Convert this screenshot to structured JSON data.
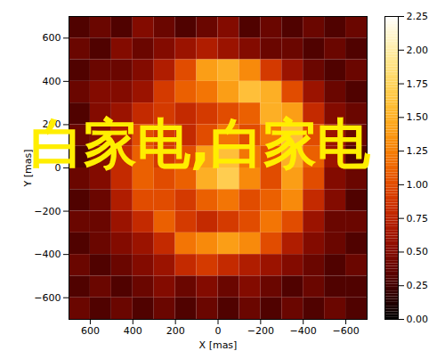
{
  "chart_data": {
    "type": "heatmap",
    "xlabel": "X [mas]",
    "ylabel": "Y [mas]",
    "xlim": [
      700,
      -700
    ],
    "ylim": [
      -700,
      700
    ],
    "xticks": [
      600,
      400,
      200,
      0,
      -200,
      -400,
      -600
    ],
    "yticks": [
      -600,
      -400,
      -200,
      0,
      200,
      400,
      600
    ],
    "annotation": "白家电,白家电",
    "x": [
      650,
      550,
      450,
      350,
      250,
      150,
      50,
      -50,
      -150,
      -250,
      -350,
      -450,
      -550,
      -650
    ],
    "y": [
      650,
      550,
      450,
      350,
      250,
      150,
      50,
      -50,
      -150,
      -250,
      -350,
      -450,
      -550,
      -650
    ],
    "values": [
      [
        0.3,
        0.4,
        0.3,
        0.5,
        0.4,
        0.3,
        0.4,
        0.5,
        0.3,
        0.4,
        0.3,
        0.4,
        0.3,
        0.4
      ],
      [
        0.4,
        0.3,
        0.5,
        0.4,
        0.5,
        0.6,
        0.7,
        0.6,
        0.5,
        0.4,
        0.4,
        0.3,
        0.4,
        0.3
      ],
      [
        0.3,
        0.4,
        0.4,
        0.5,
        0.7,
        1.0,
        1.4,
        1.5,
        1.3,
        0.9,
        0.6,
        0.4,
        0.3,
        0.4
      ],
      [
        0.4,
        0.5,
        0.5,
        0.6,
        0.9,
        1.1,
        1.2,
        1.4,
        1.6,
        1.5,
        1.0,
        0.6,
        0.4,
        0.3
      ],
      [
        0.3,
        0.5,
        0.6,
        0.8,
        0.9,
        0.8,
        0.9,
        1.0,
        1.1,
        1.5,
        1.4,
        0.8,
        0.5,
        0.4
      ],
      [
        0.4,
        0.5,
        0.7,
        1.0,
        0.9,
        0.8,
        1.0,
        1.2,
        1.0,
        1.2,
        1.6,
        1.0,
        0.6,
        0.4
      ],
      [
        0.3,
        0.5,
        0.8,
        1.1,
        0.9,
        1.0,
        1.4,
        1.6,
        1.2,
        1.0,
        1.5,
        1.1,
        0.6,
        0.3
      ],
      [
        0.4,
        0.5,
        0.8,
        1.1,
        1.0,
        1.1,
        1.5,
        1.7,
        1.3,
        1.0,
        1.4,
        1.0,
        0.5,
        0.4
      ],
      [
        0.3,
        0.4,
        0.7,
        1.0,
        1.0,
        0.9,
        1.1,
        1.2,
        1.0,
        1.1,
        1.3,
        0.8,
        0.5,
        0.3
      ],
      [
        0.4,
        0.4,
        0.6,
        0.8,
        1.1,
        0.9,
        0.8,
        0.9,
        1.0,
        1.2,
        1.0,
        0.6,
        0.4,
        0.4
      ],
      [
        0.3,
        0.4,
        0.5,
        0.6,
        0.8,
        1.2,
        1.3,
        1.4,
        1.3,
        1.0,
        0.7,
        0.5,
        0.4,
        0.3
      ],
      [
        0.4,
        0.3,
        0.4,
        0.5,
        0.6,
        0.8,
        0.9,
        0.8,
        0.7,
        0.6,
        0.5,
        0.4,
        0.3,
        0.4
      ],
      [
        0.3,
        0.4,
        0.3,
        0.4,
        0.5,
        0.4,
        0.5,
        0.4,
        0.5,
        0.4,
        0.3,
        0.4,
        0.3,
        0.3
      ],
      [
        0.4,
        0.3,
        0.4,
        0.3,
        0.4,
        0.3,
        0.4,
        0.3,
        0.4,
        0.3,
        0.4,
        0.3,
        0.4,
        0.3
      ]
    ],
    "colorbar": {
      "range": [
        0,
        2.25
      ],
      "ticks": [
        {
          "value": 0,
          "label": "0.00"
        },
        {
          "value": 0.25,
          "label": "0.25"
        },
        {
          "value": 0.5,
          "label": "0.50"
        },
        {
          "value": 0.75,
          "label": "0.75"
        },
        {
          "value": 1,
          "label": "1.00"
        },
        {
          "value": 1.25,
          "label": "1.25"
        },
        {
          "value": 1.5,
          "label": "1.50"
        },
        {
          "value": 1.75,
          "label": "1.75"
        },
        {
          "value": 2,
          "label": "2.00"
        },
        {
          "value": 2.25,
          "label": "2.25"
        }
      ]
    }
  }
}
